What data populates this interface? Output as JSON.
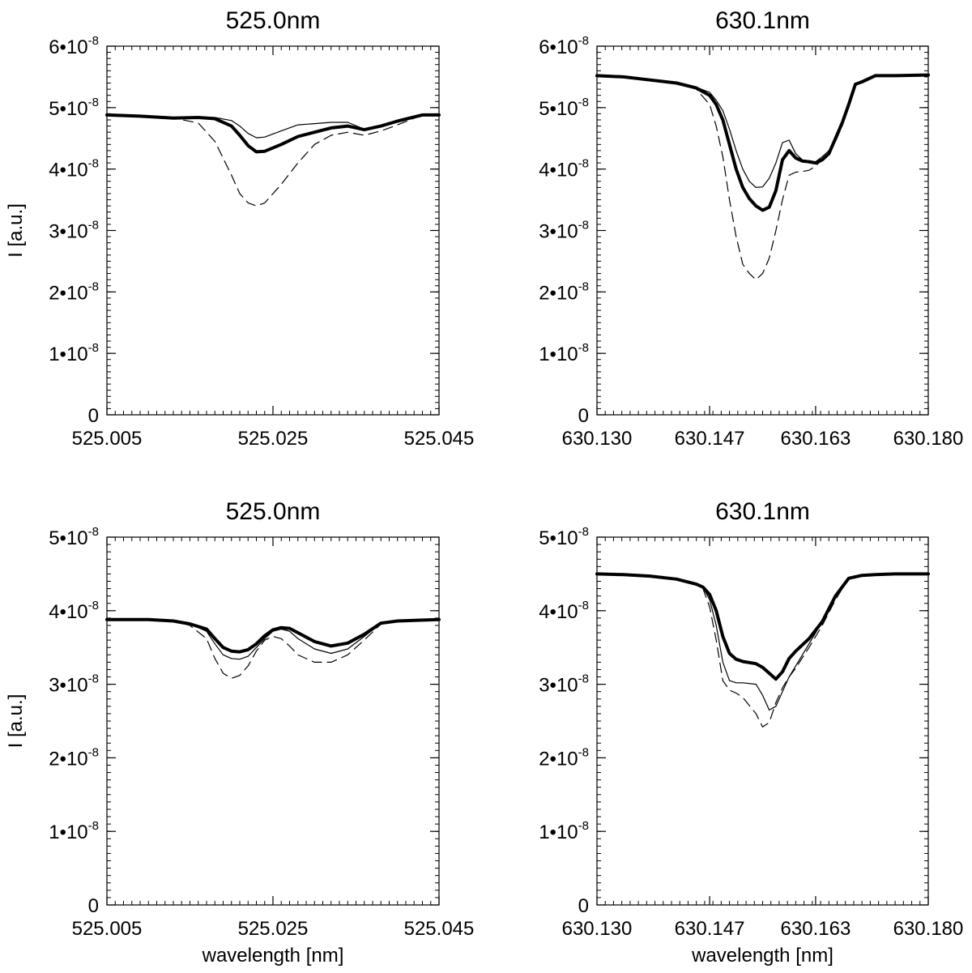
{
  "chart_data": [
    {
      "type": "line",
      "title": "525.0nm",
      "xlabel": "",
      "ylabel": "I [a.u.]",
      "xlim": [
        525.005,
        525.045
      ],
      "ylim": [
        0,
        6e-08
      ],
      "x_ticks": [
        525.005,
        525.025,
        525.045
      ],
      "x_tick_labels": [
        "525.005",
        "525.025",
        "525.045"
      ],
      "y_ticks": [
        0,
        1e-08,
        2e-08,
        3e-08,
        4e-08,
        5e-08,
        6e-08
      ],
      "y_tick_labels": [
        "0",
        "1•10",
        "2•10",
        "3•10",
        "4•10",
        "5•10",
        "6•10"
      ],
      "y_tick_exponent": "-8",
      "grid": false,
      "series": [
        {
          "style": "thick",
          "x": [
            525.005,
            525.009,
            525.013,
            525.016,
            525.018,
            525.02,
            525.021,
            525.022,
            525.023,
            525.024,
            525.026,
            525.028,
            525.03,
            525.032,
            525.034,
            525.036,
            525.038,
            525.04,
            525.043,
            525.045
          ],
          "values": [
            4.88e-08,
            4.86e-08,
            4.83e-08,
            4.84e-08,
            4.82e-08,
            4.7e-08,
            4.55e-08,
            4.38e-08,
            4.28e-08,
            4.29e-08,
            4.4e-08,
            4.53e-08,
            4.6e-08,
            4.67e-08,
            4.7e-08,
            4.64e-08,
            4.7e-08,
            4.78e-08,
            4.88e-08,
            4.88e-08
          ]
        },
        {
          "style": "thin",
          "x": [
            525.005,
            525.009,
            525.013,
            525.016,
            525.018,
            525.02,
            525.021,
            525.022,
            525.023,
            525.024,
            525.026,
            525.028,
            525.03,
            525.032,
            525.034,
            525.036,
            525.038,
            525.04,
            525.043,
            525.045
          ],
          "values": [
            4.88e-08,
            4.86e-08,
            4.84e-08,
            4.85e-08,
            4.84e-08,
            4.79e-08,
            4.7e-08,
            4.58e-08,
            4.51e-08,
            4.52e-08,
            4.62e-08,
            4.72e-08,
            4.74e-08,
            4.76e-08,
            4.76e-08,
            4.65e-08,
            4.69e-08,
            4.78e-08,
            4.88e-08,
            4.88e-08
          ]
        },
        {
          "style": "dashed",
          "x": [
            525.005,
            525.009,
            525.013,
            525.016,
            525.018,
            525.02,
            525.021,
            525.022,
            525.023,
            525.024,
            525.026,
            525.028,
            525.03,
            525.032,
            525.034,
            525.036,
            525.038,
            525.04,
            525.043,
            525.045
          ],
          "values": [
            4.88e-08,
            4.86e-08,
            4.83e-08,
            4.75e-08,
            4.45e-08,
            3.9e-08,
            3.6e-08,
            3.45e-08,
            3.4e-08,
            3.45e-08,
            3.75e-08,
            4.1e-08,
            4.4e-08,
            4.55e-08,
            4.6e-08,
            4.55e-08,
            4.62e-08,
            4.72e-08,
            4.88e-08,
            4.88e-08
          ]
        }
      ]
    },
    {
      "type": "line",
      "title": "630.1nm",
      "xlabel": "",
      "ylabel": "",
      "xlim": [
        630.13,
        630.18
      ],
      "ylim": [
        0,
        6e-08
      ],
      "x_ticks": [
        630.13,
        630.147,
        630.163,
        630.18
      ],
      "x_tick_labels": [
        "630.130",
        "630.147",
        "630.163",
        "630.180"
      ],
      "y_ticks": [
        0,
        1e-08,
        2e-08,
        3e-08,
        4e-08,
        5e-08,
        6e-08
      ],
      "y_tick_labels": [
        "0",
        "1•10",
        "2•10",
        "3•10",
        "4•10",
        "5•10",
        "6•10"
      ],
      "y_tick_exponent": "-8",
      "grid": false,
      "series": [
        {
          "style": "thick",
          "x": [
            630.13,
            630.134,
            630.138,
            630.142,
            630.145,
            630.147,
            630.148,
            630.149,
            630.15,
            630.151,
            630.152,
            630.153,
            630.154,
            630.155,
            630.156,
            630.157,
            630.158,
            630.159,
            630.16,
            630.161,
            630.162,
            630.163,
            630.164,
            630.165,
            630.166,
            630.167,
            630.168,
            630.169,
            630.17,
            630.172,
            630.175,
            630.18
          ],
          "values": [
            5.52e-08,
            5.5e-08,
            5.45e-08,
            5.4e-08,
            5.32e-08,
            5.2e-08,
            5.05e-08,
            4.8e-08,
            4.4e-08,
            4e-08,
            3.7e-08,
            3.52e-08,
            3.4e-08,
            3.33e-08,
            3.38e-08,
            3.65e-08,
            4.15e-08,
            4.3e-08,
            4.18e-08,
            4.13e-08,
            4.12e-08,
            4.1e-08,
            4.15e-08,
            4.25e-08,
            4.5e-08,
            4.75e-08,
            5.05e-08,
            5.38e-08,
            5.42e-08,
            5.52e-08,
            5.52e-08,
            5.53e-08
          ]
        },
        {
          "style": "thin",
          "x": [
            630.13,
            630.134,
            630.138,
            630.142,
            630.145,
            630.147,
            630.148,
            630.149,
            630.15,
            630.151,
            630.152,
            630.153,
            630.154,
            630.155,
            630.156,
            630.157,
            630.158,
            630.159,
            630.16,
            630.161,
            630.162,
            630.163,
            630.164,
            630.165,
            630.166,
            630.167,
            630.168,
            630.169,
            630.17,
            630.172,
            630.175,
            630.18
          ],
          "values": [
            5.52e-08,
            5.5e-08,
            5.45e-08,
            5.4e-08,
            5.33e-08,
            5.25e-08,
            5.12e-08,
            4.95e-08,
            4.65e-08,
            4.3e-08,
            4e-08,
            3.8e-08,
            3.7e-08,
            3.71e-08,
            3.85e-08,
            4.1e-08,
            4.43e-08,
            4.47e-08,
            4.25e-08,
            4.15e-08,
            4.1e-08,
            4.12e-08,
            4.2e-08,
            4.3e-08,
            4.5e-08,
            4.75e-08,
            5.05e-08,
            5.38e-08,
            5.42e-08,
            5.52e-08,
            5.52e-08,
            5.53e-08
          ]
        },
        {
          "style": "dashed",
          "x": [
            630.13,
            630.134,
            630.138,
            630.142,
            630.145,
            630.147,
            630.148,
            630.149,
            630.15,
            630.151,
            630.152,
            630.153,
            630.154,
            630.155,
            630.156,
            630.157,
            630.158,
            630.159,
            630.16,
            630.161,
            630.162,
            630.163,
            630.164,
            630.165,
            630.166,
            630.167,
            630.168,
            630.169,
            630.17,
            630.172,
            630.175,
            630.18
          ],
          "values": [
            5.52e-08,
            5.5e-08,
            5.45e-08,
            5.4e-08,
            5.3e-08,
            5.05e-08,
            4.7e-08,
            4.2e-08,
            3.5e-08,
            2.9e-08,
            2.45e-08,
            2.3e-08,
            2.2e-08,
            2.3e-08,
            2.55e-08,
            3e-08,
            3.5e-08,
            3.9e-08,
            3.95e-08,
            3.96e-08,
            3.98e-08,
            4.05e-08,
            4.15e-08,
            4.25e-08,
            4.45e-08,
            4.7e-08,
            5e-08,
            5.38e-08,
            5.42e-08,
            5.52e-08,
            5.52e-08,
            5.53e-08
          ]
        }
      ]
    },
    {
      "type": "line",
      "title": "525.0nm",
      "xlabel": "wavelength [nm]",
      "ylabel": "I [a.u.]",
      "xlim": [
        525.005,
        525.045
      ],
      "ylim": [
        0,
        5e-08
      ],
      "x_ticks": [
        525.005,
        525.025,
        525.045
      ],
      "x_tick_labels": [
        "525.005",
        "525.025",
        "525.045"
      ],
      "y_ticks": [
        0,
        1e-08,
        2e-08,
        3e-08,
        4e-08,
        5e-08
      ],
      "y_tick_labels": [
        "0",
        "1•10",
        "2•10",
        "3•10",
        "4•10",
        "5•10"
      ],
      "y_tick_exponent": "-8",
      "grid": false,
      "series": [
        {
          "style": "thick",
          "x": [
            525.005,
            525.01,
            525.013,
            525.015,
            525.017,
            525.018,
            525.019,
            525.02,
            525.021,
            525.022,
            525.023,
            525.024,
            525.025,
            525.026,
            525.027,
            525.028,
            525.03,
            525.032,
            525.034,
            525.036,
            525.038,
            525.04,
            525.045
          ],
          "values": [
            3.88e-08,
            3.88e-08,
            3.86e-08,
            3.82e-08,
            3.75e-08,
            3.62e-08,
            3.5e-08,
            3.45e-08,
            3.44e-08,
            3.47e-08,
            3.55e-08,
            3.66e-08,
            3.74e-08,
            3.77e-08,
            3.76e-08,
            3.7e-08,
            3.58e-08,
            3.52e-08,
            3.56e-08,
            3.68e-08,
            3.83e-08,
            3.86e-08,
            3.88e-08
          ]
        },
        {
          "style": "thin",
          "x": [
            525.005,
            525.01,
            525.013,
            525.015,
            525.017,
            525.018,
            525.019,
            525.02,
            525.021,
            525.022,
            525.023,
            525.024,
            525.025,
            525.026,
            525.027,
            525.028,
            525.03,
            525.032,
            525.034,
            525.036,
            525.038,
            525.04,
            525.045
          ],
          "values": [
            3.88e-08,
            3.88e-08,
            3.86e-08,
            3.82e-08,
            3.72e-08,
            3.55e-08,
            3.4e-08,
            3.35e-08,
            3.34e-08,
            3.38e-08,
            3.5e-08,
            3.62e-08,
            3.72e-08,
            3.75e-08,
            3.72e-08,
            3.62e-08,
            3.48e-08,
            3.42e-08,
            3.48e-08,
            3.65e-08,
            3.83e-08,
            3.86e-08,
            3.88e-08
          ]
        },
        {
          "style": "dashed",
          "x": [
            525.005,
            525.01,
            525.013,
            525.015,
            525.017,
            525.018,
            525.019,
            525.02,
            525.021,
            525.022,
            525.023,
            525.024,
            525.025,
            525.026,
            525.027,
            525.028,
            525.03,
            525.032,
            525.034,
            525.036,
            525.038,
            525.04,
            525.045
          ],
          "values": [
            3.88e-08,
            3.88e-08,
            3.86e-08,
            3.8e-08,
            3.62e-08,
            3.35e-08,
            3.15e-08,
            3.08e-08,
            3.12e-08,
            3.25e-08,
            3.45e-08,
            3.6e-08,
            3.65e-08,
            3.62e-08,
            3.52e-08,
            3.4e-08,
            3.3e-08,
            3.3e-08,
            3.4e-08,
            3.6e-08,
            3.82e-08,
            3.86e-08,
            3.88e-08
          ]
        }
      ]
    },
    {
      "type": "line",
      "title": "630.1nm",
      "xlabel": "wavelength [nm]",
      "ylabel": "",
      "xlim": [
        630.13,
        630.18
      ],
      "ylim": [
        0,
        5e-08
      ],
      "x_ticks": [
        630.13,
        630.147,
        630.163,
        630.18
      ],
      "x_tick_labels": [
        "630.130",
        "630.147",
        "630.163",
        "630.180"
      ],
      "y_ticks": [
        0,
        1e-08,
        2e-08,
        3e-08,
        4e-08,
        5e-08
      ],
      "y_tick_labels": [
        "0",
        "1•10",
        "2•10",
        "3•10",
        "4•10",
        "5•10"
      ],
      "y_tick_exponent": "-8",
      "grid": false,
      "series": [
        {
          "style": "thick",
          "x": [
            630.13,
            630.134,
            630.138,
            630.142,
            630.145,
            630.146,
            630.147,
            630.148,
            630.149,
            630.15,
            630.151,
            630.152,
            630.154,
            630.155,
            630.156,
            630.157,
            630.158,
            630.159,
            630.16,
            630.162,
            630.164,
            630.166,
            630.168,
            630.17,
            630.172,
            630.175,
            630.18
          ],
          "values": [
            4.5e-08,
            4.49e-08,
            4.47e-08,
            4.43e-08,
            4.36e-08,
            4.32e-08,
            4.22e-08,
            4e-08,
            3.65e-08,
            3.42e-08,
            3.34e-08,
            3.31e-08,
            3.28e-08,
            3.23e-08,
            3.15e-08,
            3.07e-08,
            3.17e-08,
            3.35e-08,
            3.45e-08,
            3.62e-08,
            3.85e-08,
            4.2e-08,
            4.44e-08,
            4.48e-08,
            4.49e-08,
            4.5e-08,
            4.5e-08
          ]
        },
        {
          "style": "thin",
          "x": [
            630.13,
            630.134,
            630.138,
            630.142,
            630.145,
            630.146,
            630.147,
            630.148,
            630.149,
            630.15,
            630.151,
            630.152,
            630.154,
            630.155,
            630.156,
            630.157,
            630.158,
            630.159,
            630.16,
            630.162,
            630.164,
            630.166,
            630.168,
            630.17,
            630.172,
            630.175,
            630.18
          ],
          "values": [
            4.5e-08,
            4.49e-08,
            4.47e-08,
            4.43e-08,
            4.36e-08,
            4.32e-08,
            4.15e-08,
            3.8e-08,
            3.3e-08,
            3.05e-08,
            3.02e-08,
            3.02e-08,
            3e-08,
            2.85e-08,
            2.65e-08,
            2.7e-08,
            2.9e-08,
            3.1e-08,
            3.25e-08,
            3.55e-08,
            3.85e-08,
            4.2e-08,
            4.44e-08,
            4.48e-08,
            4.49e-08,
            4.5e-08,
            4.5e-08
          ]
        },
        {
          "style": "dashed",
          "x": [
            630.13,
            630.134,
            630.138,
            630.142,
            630.145,
            630.146,
            630.147,
            630.148,
            630.149,
            630.15,
            630.151,
            630.152,
            630.154,
            630.155,
            630.156,
            630.157,
            630.158,
            630.159,
            630.16,
            630.162,
            630.164,
            630.166,
            630.168,
            630.17,
            630.172,
            630.175,
            630.18
          ],
          "values": [
            4.5e-08,
            4.49e-08,
            4.47e-08,
            4.43e-08,
            4.36e-08,
            4.3e-08,
            4.05e-08,
            3.6e-08,
            3.05e-08,
            2.92e-08,
            2.88e-08,
            2.82e-08,
            2.6e-08,
            2.42e-08,
            2.48e-08,
            2.75e-08,
            2.95e-08,
            3.1e-08,
            3.22e-08,
            3.5e-08,
            3.8e-08,
            4.15e-08,
            4.44e-08,
            4.48e-08,
            4.49e-08,
            4.5e-08,
            4.5e-08
          ]
        }
      ]
    }
  ]
}
